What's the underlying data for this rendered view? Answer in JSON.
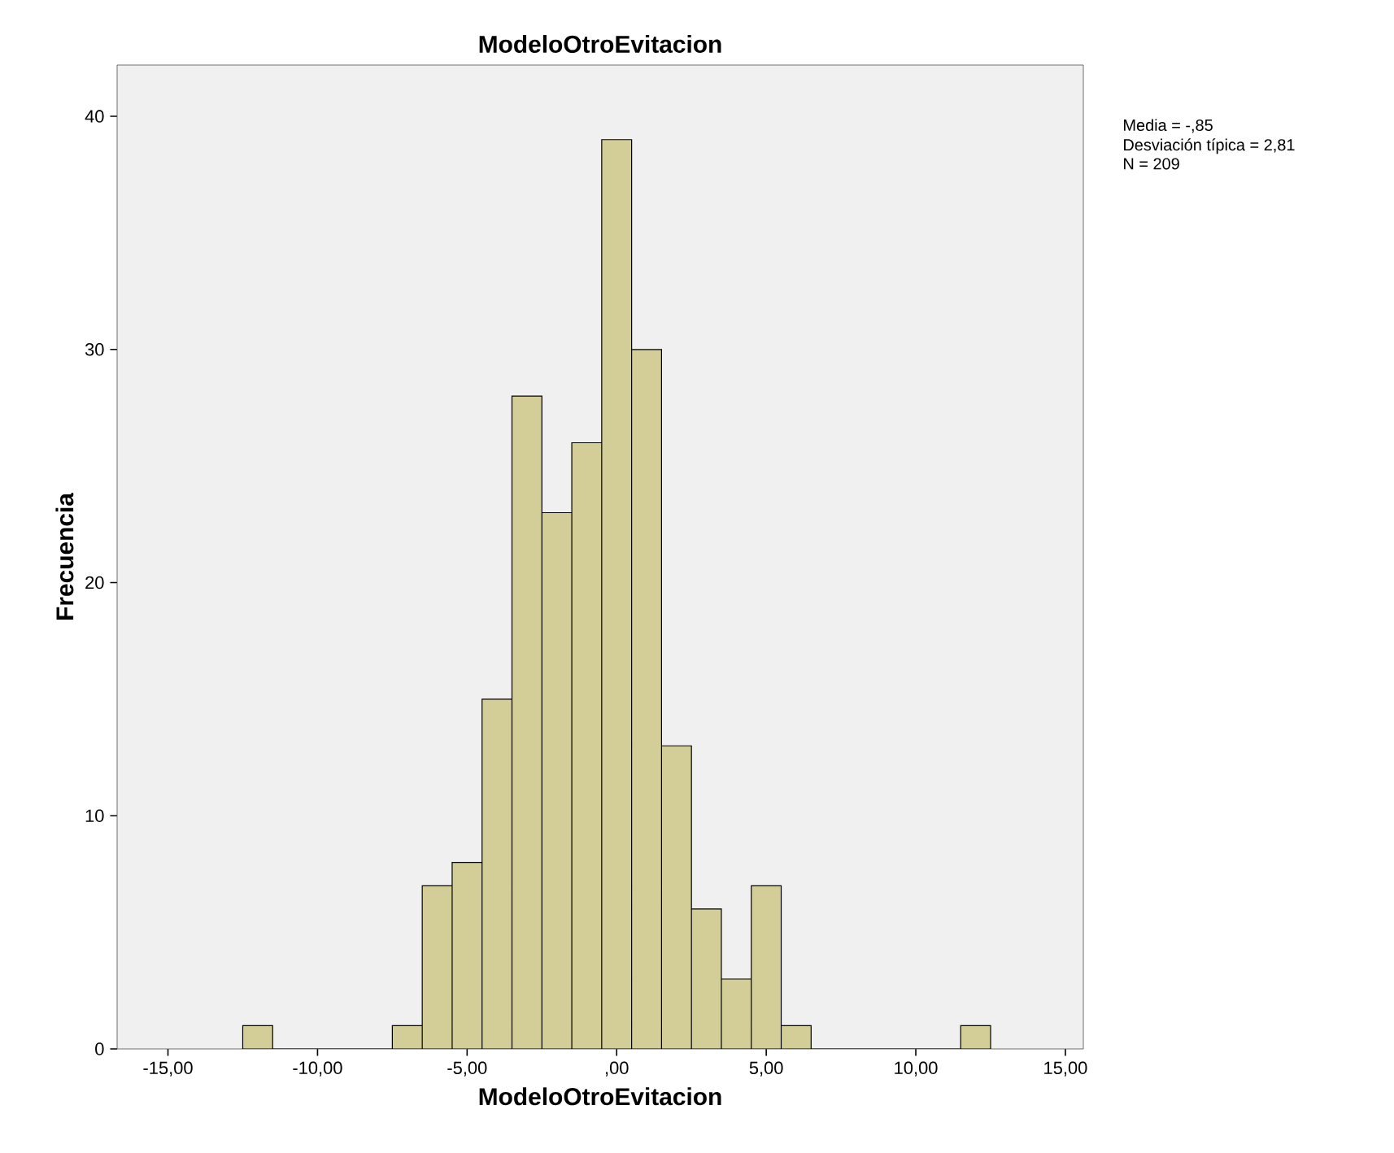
{
  "chart_data": {
    "type": "histogram",
    "title": "ModeloOtroEvitacion",
    "xlabel": "ModeloOtroEvitacion",
    "ylabel": "Frecuencia",
    "bins": [
      -12.5,
      -11.5,
      -10.5,
      -9.5,
      -8.5,
      -7.5,
      -6.5,
      -5.5,
      -4.5,
      -3.5,
      -2.5,
      -1.5,
      -0.5,
      0.5,
      1.5,
      2.5,
      3.5,
      4.5,
      5.5,
      6.5,
      7.5,
      8.5,
      9.5,
      10.5,
      11.5,
      12.5
    ],
    "values": [
      1,
      0,
      0,
      0,
      0,
      1,
      7,
      8,
      15,
      28,
      23,
      26,
      39,
      30,
      13,
      6,
      3,
      7,
      1,
      0,
      0,
      0,
      0,
      0,
      1
    ],
    "color": "#d3ce97",
    "xlim": [
      -16.7,
      15.6
    ],
    "ylim": [
      0,
      42.2
    ],
    "xticks": [
      {
        "value": -15,
        "label": "-15,00"
      },
      {
        "value": -10,
        "label": "-10,00"
      },
      {
        "value": -5,
        "label": "-5,00"
      },
      {
        "value": 0,
        "label": ",00"
      },
      {
        "value": 5,
        "label": "5,00"
      },
      {
        "value": 10,
        "label": "10,00"
      },
      {
        "value": 15,
        "label": "15,00"
      }
    ],
    "yticks": [
      0,
      10,
      20,
      30,
      40
    ],
    "annotations": [
      "Media = -,85",
      "Desviación típica = 2,81",
      "N = 209"
    ]
  }
}
